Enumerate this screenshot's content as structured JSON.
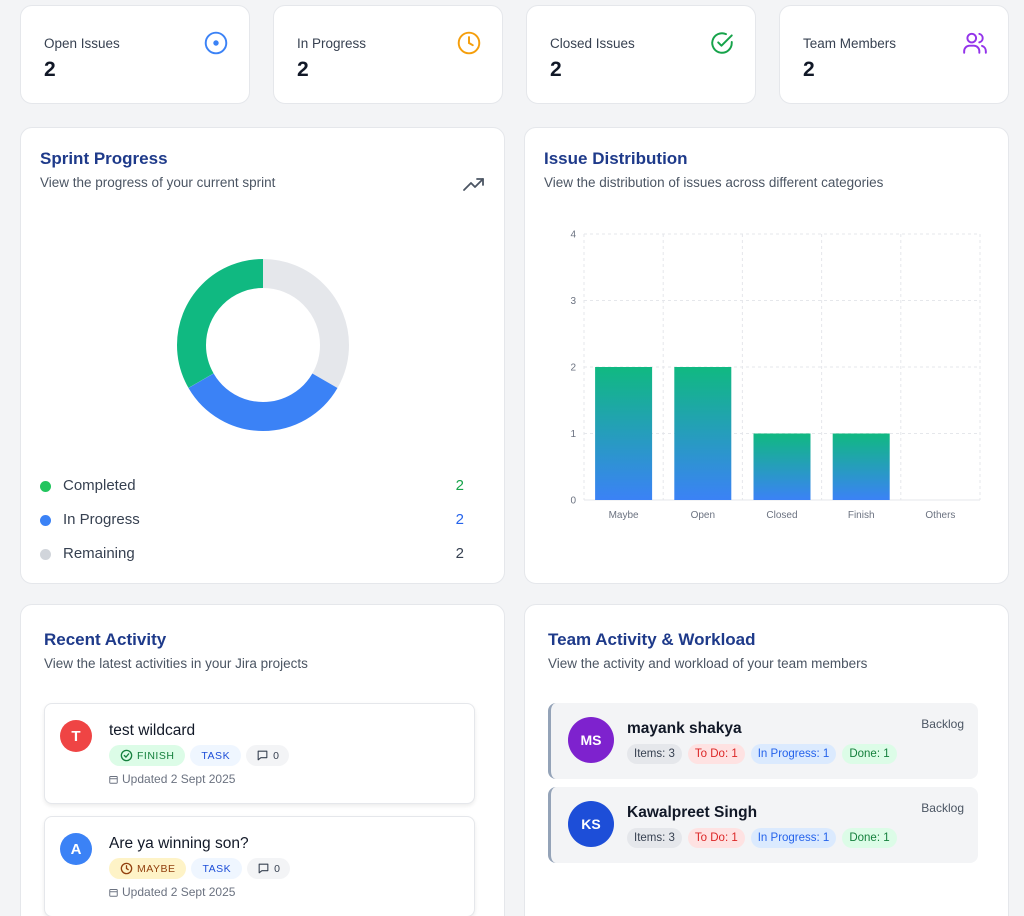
{
  "stats": [
    {
      "label": "Open Issues",
      "value": "2",
      "icon": "target-icon",
      "color": "#3b82f6"
    },
    {
      "label": "In Progress",
      "value": "2",
      "icon": "clock-icon",
      "color": "#f59e0b"
    },
    {
      "label": "Closed Issues",
      "value": "2",
      "icon": "check-circle-icon",
      "color": "#16a34a"
    },
    {
      "label": "Team Members",
      "value": "2",
      "icon": "users-icon",
      "color": "#9333ea"
    }
  ],
  "sprint": {
    "title": "Sprint Progress",
    "subtitle": "View the progress of your current sprint",
    "icon": "trending-up-icon",
    "legend": [
      {
        "label": "Completed",
        "value": "2",
        "color": "#16a34a",
        "dot": "#22c55e"
      },
      {
        "label": "In Progress",
        "value": "2",
        "color": "#2563eb",
        "dot": "#3b82f6"
      },
      {
        "label": "Remaining",
        "value": "2",
        "color": "#374151",
        "dot": "#d1d5db"
      }
    ],
    "donut_colors": [
      "#10b981",
      "#3b82f6",
      "#e5e7eb"
    ]
  },
  "distribution": {
    "title": "Issue Distribution",
    "subtitle": "View the distribution of issues across different categories"
  },
  "chart_data": {
    "type": "bar",
    "categories": [
      "Maybe",
      "Open",
      "Closed",
      "Finish",
      "Others"
    ],
    "values": [
      2,
      2,
      1,
      1,
      0
    ],
    "yticks": [
      "0",
      "1",
      "2",
      "3",
      "4"
    ],
    "ylim": [
      0,
      4
    ],
    "grid": true,
    "gradient": [
      "#10b981",
      "#3b82f6"
    ]
  },
  "recent": {
    "title": "Recent Activity",
    "subtitle": "View the latest activities in your Jira projects",
    "items": [
      {
        "avatar": "T",
        "avatar_color": "#ef4444",
        "title": "test wildcard",
        "status": "FINISH",
        "status_icon": "check-circle-icon",
        "type": "TASK",
        "comments": "0",
        "updated": "Updated 2 Sept 2025"
      },
      {
        "avatar": "A",
        "avatar_color": "#3b82f6",
        "title": "Are ya winning son?",
        "status": "MAYBE",
        "status_icon": "clock-icon",
        "type": "TASK",
        "comments": "0",
        "updated": "Updated 2 Sept 2025"
      }
    ]
  },
  "team": {
    "title": "Team Activity & Workload",
    "subtitle": "View the activity and workload of your team members",
    "members": [
      {
        "initials": "MS",
        "avatar_color": "#7e22ce",
        "name": "mayank shakya",
        "status": "Backlog",
        "items": "Items: 3",
        "todo": "To Do: 1",
        "progress": "In Progress: 1",
        "done": "Done: 1"
      },
      {
        "initials": "KS",
        "avatar_color": "#1d4ed8",
        "name": "Kawalpreet Singh",
        "status": "Backlog",
        "items": "Items: 3",
        "todo": "To Do: 1",
        "progress": "In Progress: 1",
        "done": "Done: 1"
      }
    ]
  }
}
